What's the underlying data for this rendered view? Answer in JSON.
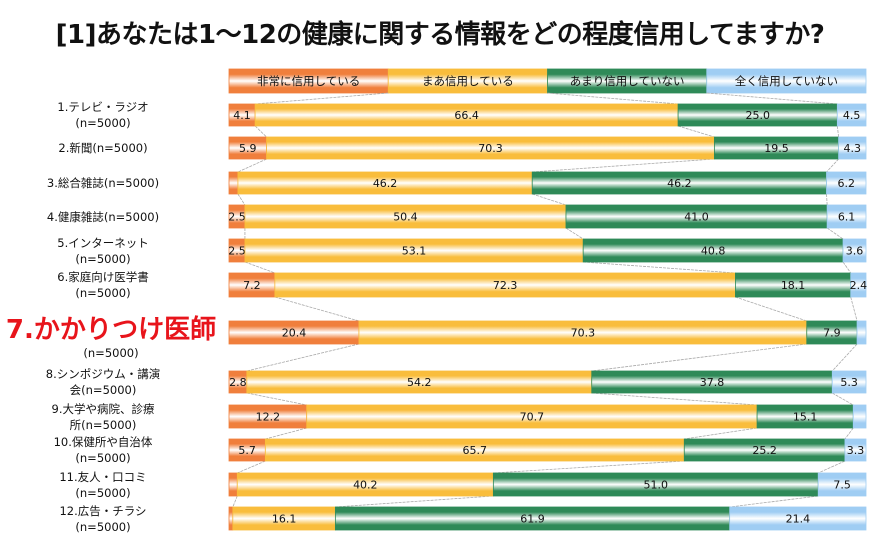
{
  "title": "[1]あなたは1〜12の健康に関する情報をどの程度信用してますか?",
  "chart_data": {
    "type": "bar",
    "orientation": "horizontal",
    "stacked": true,
    "normalized_percent": true,
    "title": "[1]あなたは1〜12の健康に関する情報をどの程度信用してますか?",
    "xlabel": "",
    "ylabel": "",
    "xlim": [
      0,
      100
    ],
    "grid": false,
    "legend_position": "top",
    "categories": [
      {
        "label": "1.テレビ・ラジオ",
        "sub": "(n=5000)",
        "highlight": false
      },
      {
        "label": "2.新聞(n=5000)",
        "sub": "",
        "highlight": false
      },
      {
        "label": "3.総合雑誌(n=5000)",
        "sub": "",
        "highlight": false
      },
      {
        "label": "4.健康雑誌(n=5000)",
        "sub": "",
        "highlight": false
      },
      {
        "label": "5.インターネット",
        "sub": "(n=5000)",
        "highlight": false
      },
      {
        "label": "6.家庭向け医学書",
        "sub": "(n=5000)",
        "highlight": false
      },
      {
        "label": "7.かかりつけ医師",
        "sub": "(n=5000)",
        "highlight": true
      },
      {
        "label": "8.シンポジウム・講演",
        "sub": "会(n=5000)",
        "highlight": false
      },
      {
        "label": "9.大学や病院、診療",
        "sub": "所(n=5000)",
        "highlight": false
      },
      {
        "label": "10.保健所や自治体",
        "sub": "(n=5000)",
        "highlight": false
      },
      {
        "label": "11.友人・口コミ",
        "sub": "(n=5000)",
        "highlight": false
      },
      {
        "label": "12.広告・チラシ",
        "sub": "(n=5000)",
        "highlight": false
      }
    ],
    "series": [
      {
        "name": "非常に信用している",
        "color": "#f07f3c",
        "values": [
          4.1,
          5.9,
          1.4,
          2.5,
          2.5,
          7.2,
          20.4,
          2.8,
          12.2,
          5.7,
          1.3,
          0.6
        ],
        "labels": [
          "4.1",
          "5.9",
          "",
          "2.5",
          "2.5",
          "7.2",
          "20.4",
          "2.8",
          "12.2",
          "5.7",
          "",
          ""
        ]
      },
      {
        "name": "まあ信用している",
        "color": "#f9bd3c",
        "values": [
          66.4,
          70.3,
          46.2,
          50.4,
          53.1,
          72.3,
          70.3,
          54.2,
          70.7,
          65.7,
          40.2,
          16.1
        ],
        "labels": [
          "66.4",
          "70.3",
          "46.2",
          "50.4",
          "53.1",
          "72.3",
          "70.3",
          "54.2",
          "70.7",
          "65.7",
          "40.2",
          "16.1"
        ]
      },
      {
        "name": "あまり信用していない",
        "color": "#2f8a58",
        "values": [
          25.0,
          19.5,
          46.2,
          41.0,
          40.8,
          18.1,
          7.9,
          37.8,
          15.1,
          25.2,
          51.0,
          61.9
        ],
        "labels": [
          "25.0",
          "19.5",
          "46.2",
          "41.0",
          "40.8",
          "18.1",
          "7.9",
          "37.8",
          "15.1",
          "25.2",
          "51.0",
          "61.9"
        ]
      },
      {
        "name": "全く信用していない",
        "color": "#9fcdf3",
        "values": [
          4.5,
          4.3,
          6.2,
          6.1,
          3.6,
          2.4,
          1.4,
          5.3,
          2.0,
          3.3,
          7.5,
          21.4
        ],
        "labels": [
          "4.5",
          "4.3",
          "6.2",
          "6.1",
          "3.6",
          "2.4",
          "",
          "5.3",
          "",
          "3.3",
          "7.5",
          "21.4"
        ]
      }
    ]
  }
}
